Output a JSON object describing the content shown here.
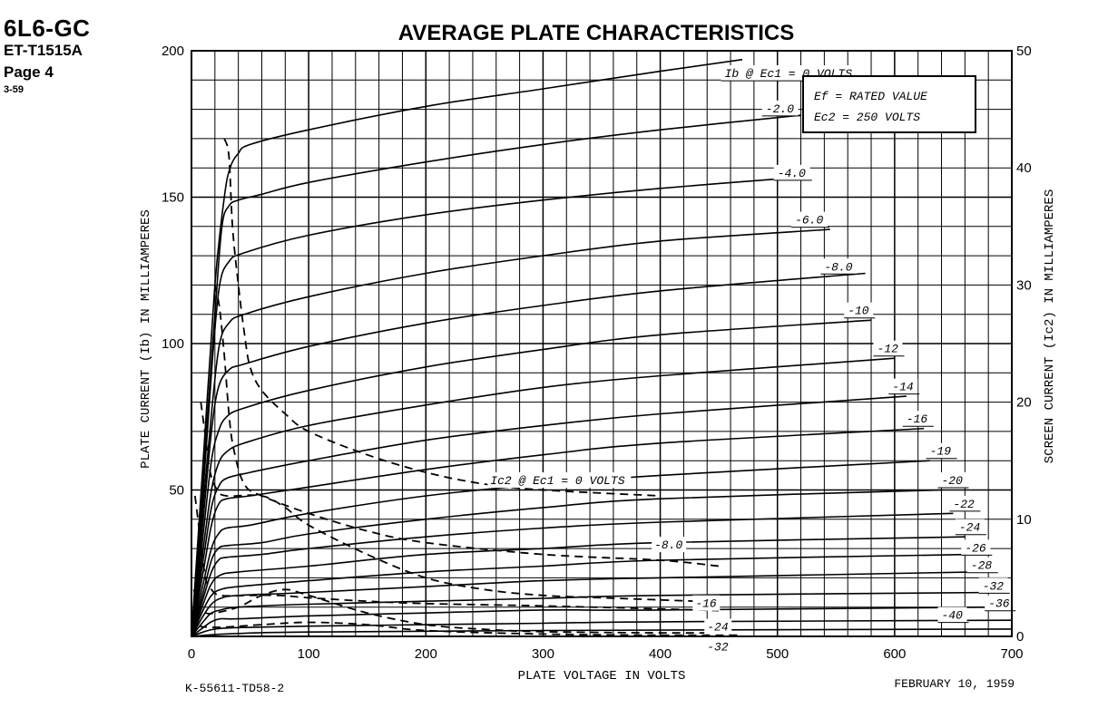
{
  "header": {
    "tube_type": "6L6-GC",
    "code": "ET-T1515A",
    "page": "Page 4",
    "date_code": "3-59"
  },
  "footer": {
    "drawing_number": "K-55611-TD58-2",
    "date": "FEBRUARY 10, 1959"
  },
  "chart_data": {
    "type": "line",
    "title": "AVERAGE PLATE CHARACTERISTICS",
    "xlabel": "PLATE VOLTAGE IN VOLTS",
    "ylabel": "PLATE CURRENT (Ib) IN MILLIAMPERES",
    "y2label": "SCREEN CURRENT (Ic2) IN MILLIAMPERES",
    "xlim": [
      0,
      700
    ],
    "ylim": [
      0,
      200
    ],
    "y2lim": [
      0,
      50
    ],
    "x_ticks": [
      0,
      100,
      200,
      300,
      400,
      500,
      600,
      700
    ],
    "y_ticks": [
      50,
      100,
      150,
      200
    ],
    "y2_ticks": [
      0,
      10,
      20,
      30,
      40,
      50
    ],
    "grid": true,
    "conditions": [
      "Ef = RATED VALUE",
      "Ec2 = 250 VOLTS"
    ],
    "plate_current_series": [
      {
        "name": "Ib @ Ec1 = 0 VOLTS",
        "label_x": 455,
        "label_y": 191,
        "points": [
          [
            0,
            0
          ],
          [
            10,
            60
          ],
          [
            20,
            120
          ],
          [
            28,
            150
          ],
          [
            33,
            160
          ],
          [
            40,
            165
          ],
          [
            50,
            168
          ],
          [
            100,
            173
          ],
          [
            200,
            181
          ],
          [
            300,
            187
          ],
          [
            400,
            193
          ],
          [
            470,
            197
          ]
        ]
      },
      {
        "name": "-2.0",
        "label_x": 490,
        "label_y": 179,
        "points": [
          [
            0,
            0
          ],
          [
            10,
            55
          ],
          [
            20,
            110
          ],
          [
            26,
            140
          ],
          [
            32,
            147
          ],
          [
            40,
            149
          ],
          [
            60,
            151
          ],
          [
            100,
            155
          ],
          [
            200,
            162
          ],
          [
            300,
            168
          ],
          [
            400,
            173
          ],
          [
            520,
            178
          ]
        ]
      },
      {
        "name": "-4.0",
        "label_x": 500,
        "label_y": 157,
        "points": [
          [
            0,
            0
          ],
          [
            10,
            50
          ],
          [
            18,
            95
          ],
          [
            24,
            120
          ],
          [
            32,
            128
          ],
          [
            45,
            131
          ],
          [
            100,
            137
          ],
          [
            200,
            144
          ],
          [
            300,
            149
          ],
          [
            400,
            153
          ],
          [
            525,
            157
          ]
        ]
      },
      {
        "name": "-6.0",
        "label_x": 515,
        "label_y": 141,
        "points": [
          [
            0,
            0
          ],
          [
            10,
            45
          ],
          [
            18,
            80
          ],
          [
            24,
            100
          ],
          [
            32,
            107
          ],
          [
            45,
            110
          ],
          [
            100,
            116
          ],
          [
            200,
            124
          ],
          [
            300,
            130
          ],
          [
            400,
            135
          ],
          [
            545,
            139
          ]
        ]
      },
      {
        "name": "-8.0",
        "label_x": 540,
        "label_y": 125,
        "points": [
          [
            0,
            0
          ],
          [
            10,
            40
          ],
          [
            17,
            70
          ],
          [
            23,
            85
          ],
          [
            32,
            91
          ],
          [
            45,
            93
          ],
          [
            100,
            99
          ],
          [
            200,
            107
          ],
          [
            300,
            113
          ],
          [
            400,
            118
          ],
          [
            575,
            124
          ]
        ]
      },
      {
        "name": "-10",
        "label_x": 560,
        "label_y": 110,
        "points": [
          [
            0,
            0
          ],
          [
            10,
            35
          ],
          [
            17,
            60
          ],
          [
            23,
            70
          ],
          [
            30,
            75
          ],
          [
            45,
            78
          ],
          [
            100,
            84
          ],
          [
            200,
            92
          ],
          [
            300,
            98
          ],
          [
            400,
            103
          ],
          [
            580,
            108
          ]
        ]
      },
      {
        "name": "-12",
        "label_x": 585,
        "label_y": 97,
        "points": [
          [
            0,
            0
          ],
          [
            10,
            30
          ],
          [
            17,
            50
          ],
          [
            23,
            59
          ],
          [
            30,
            63
          ],
          [
            45,
            66
          ],
          [
            100,
            72
          ],
          [
            200,
            79
          ],
          [
            300,
            85
          ],
          [
            400,
            89
          ],
          [
            600,
            95
          ]
        ]
      },
      {
        "name": "-14",
        "label_x": 598,
        "label_y": 84,
        "points": [
          [
            0,
            0
          ],
          [
            10,
            26
          ],
          [
            17,
            44
          ],
          [
            23,
            51
          ],
          [
            30,
            54
          ],
          [
            50,
            56
          ],
          [
            100,
            60
          ],
          [
            200,
            67
          ],
          [
            300,
            72
          ],
          [
            400,
            76
          ],
          [
            610,
            82
          ]
        ]
      },
      {
        "name": "-16",
        "label_x": 610,
        "label_y": 73,
        "points": [
          [
            0,
            0
          ],
          [
            10,
            22
          ],
          [
            17,
            38
          ],
          [
            23,
            45
          ],
          [
            30,
            47
          ],
          [
            50,
            48
          ],
          [
            100,
            51
          ],
          [
            200,
            57
          ],
          [
            300,
            62
          ],
          [
            400,
            66
          ],
          [
            625,
            71
          ]
        ]
      },
      {
        "name": "-19",
        "label_x": 630,
        "label_y": 62,
        "points": [
          [
            0,
            0
          ],
          [
            10,
            18
          ],
          [
            17,
            30
          ],
          [
            23,
            35
          ],
          [
            30,
            37
          ],
          [
            50,
            38
          ],
          [
            100,
            42
          ],
          [
            200,
            48
          ],
          [
            300,
            52
          ],
          [
            400,
            55
          ],
          [
            630,
            60
          ]
        ]
      },
      {
        "name": "-20",
        "label_x": 640,
        "label_y": 52,
        "points": [
          [
            0,
            0
          ],
          [
            10,
            15
          ],
          [
            17,
            26
          ],
          [
            23,
            30
          ],
          [
            30,
            31
          ],
          [
            60,
            32
          ],
          [
            100,
            35
          ],
          [
            200,
            40
          ],
          [
            300,
            44
          ],
          [
            400,
            47
          ],
          [
            640,
            50
          ]
        ]
      },
      {
        "name": "-22",
        "label_x": 650,
        "label_y": 44,
        "points": [
          [
            0,
            0
          ],
          [
            10,
            13
          ],
          [
            17,
            22
          ],
          [
            23,
            26
          ],
          [
            30,
            27
          ],
          [
            60,
            28
          ],
          [
            100,
            30
          ],
          [
            200,
            34
          ],
          [
            300,
            37
          ],
          [
            400,
            39
          ],
          [
            650,
            42
          ]
        ]
      },
      {
        "name": "-24",
        "label_x": 655,
        "label_y": 36,
        "points": [
          [
            0,
            0
          ],
          [
            10,
            11
          ],
          [
            17,
            18
          ],
          [
            25,
            21
          ],
          [
            40,
            22
          ],
          [
            100,
            24
          ],
          [
            200,
            28
          ],
          [
            300,
            30
          ],
          [
            400,
            32
          ],
          [
            660,
            34
          ]
        ]
      },
      {
        "name": "-26",
        "label_x": 660,
        "label_y": 29,
        "points": [
          [
            0,
            0
          ],
          [
            10,
            9
          ],
          [
            17,
            14
          ],
          [
            25,
            16
          ],
          [
            40,
            17
          ],
          [
            100,
            19
          ],
          [
            200,
            22
          ],
          [
            300,
            24
          ],
          [
            400,
            26
          ],
          [
            665,
            28
          ]
        ]
      },
      {
        "name": "-28",
        "label_x": 665,
        "label_y": 23,
        "points": [
          [
            0,
            0
          ],
          [
            10,
            7
          ],
          [
            17,
            11
          ],
          [
            25,
            13
          ],
          [
            40,
            14
          ],
          [
            100,
            15
          ],
          [
            200,
            17
          ],
          [
            300,
            19
          ],
          [
            400,
            20
          ],
          [
            670,
            22
          ]
        ]
      },
      {
        "name": "-32",
        "label_x": 675,
        "label_y": 16,
        "points": [
          [
            0,
            0
          ],
          [
            10,
            5
          ],
          [
            17,
            8
          ],
          [
            25,
            9
          ],
          [
            40,
            10
          ],
          [
            100,
            11
          ],
          [
            200,
            12
          ],
          [
            300,
            13
          ],
          [
            400,
            14
          ],
          [
            685,
            15
          ]
        ]
      },
      {
        "name": "-36",
        "label_x": 680,
        "label_y": 10,
        "points": [
          [
            0,
            0
          ],
          [
            10,
            3
          ],
          [
            17,
            5
          ],
          [
            25,
            6
          ],
          [
            40,
            6
          ],
          [
            100,
            7
          ],
          [
            200,
            8
          ],
          [
            300,
            9
          ],
          [
            400,
            9
          ],
          [
            690,
            10
          ]
        ]
      },
      {
        "name": "-40",
        "label_x": 640,
        "label_y": 6,
        "points": [
          [
            0,
            0
          ],
          [
            10,
            1.5
          ],
          [
            20,
            2.5
          ],
          [
            40,
            3
          ],
          [
            100,
            3.5
          ],
          [
            200,
            4
          ],
          [
            300,
            4.5
          ],
          [
            400,
            5
          ],
          [
            700,
            5.5
          ]
        ]
      },
      {
        "name": "",
        "label_x": null,
        "label_y": null,
        "points": [
          [
            0,
            0
          ],
          [
            15,
            0.5
          ],
          [
            40,
            1
          ],
          [
            100,
            1.5
          ],
          [
            300,
            2
          ],
          [
            700,
            2.5
          ]
        ]
      }
    ],
    "screen_current_series": [
      {
        "name": "Ic2 @ Ec1 = 0 VOLTS",
        "label_x": 255,
        "label_y2": 13,
        "points": [
          [
            28,
            42.5
          ],
          [
            32,
            41
          ],
          [
            35,
            35
          ],
          [
            40,
            30
          ],
          [
            45,
            26
          ],
          [
            50,
            23
          ],
          [
            60,
            21
          ],
          [
            80,
            19
          ],
          [
            100,
            17.5
          ],
          [
            150,
            15.5
          ],
          [
            200,
            14
          ],
          [
            250,
            13
          ],
          [
            300,
            12.5
          ],
          [
            400,
            12
          ]
        ]
      },
      {
        "name": "",
        "label_x": null,
        "label_y2": null,
        "points": [
          [
            20,
            30
          ],
          [
            24,
            28
          ],
          [
            28,
            24
          ],
          [
            32,
            19
          ],
          [
            36,
            16
          ],
          [
            45,
            13
          ],
          [
            60,
            12
          ],
          [
            100,
            10.5
          ],
          [
            150,
            9
          ],
          [
            200,
            8
          ],
          [
            300,
            7
          ],
          [
            400,
            6.5
          ],
          [
            450,
            6
          ]
        ]
      },
      {
        "name": "-8.0",
        "label_x": 395,
        "label_y2": 7.5,
        "points": [
          [
            8,
            20
          ],
          [
            12,
            17
          ],
          [
            16,
            14
          ],
          [
            22,
            12.5
          ],
          [
            30,
            12
          ],
          [
            60,
            12
          ],
          [
            80,
            11
          ],
          [
            100,
            9.5
          ],
          [
            150,
            7
          ],
          [
            200,
            5
          ],
          [
            250,
            4
          ],
          [
            300,
            3.5
          ],
          [
            350,
            3.3
          ],
          [
            430,
            3
          ]
        ]
      },
      {
        "name": "-16",
        "label_x": 430,
        "label_y2": 2.5,
        "points": [
          [
            3,
            12
          ],
          [
            8,
            8
          ],
          [
            12,
            5
          ],
          [
            17,
            4
          ],
          [
            25,
            3.5
          ],
          [
            50,
            3.5
          ],
          [
            75,
            3.5
          ],
          [
            100,
            3.3
          ],
          [
            150,
            3
          ],
          [
            200,
            2.8
          ],
          [
            300,
            2.6
          ],
          [
            380,
            2.4
          ],
          [
            450,
            2.2
          ]
        ]
      },
      {
        "name": "-24",
        "label_x": 440,
        "label_y2": 0.5,
        "points": [
          [
            2,
            4
          ],
          [
            6,
            2.5
          ],
          [
            12,
            2
          ],
          [
            20,
            2
          ],
          [
            40,
            2.5
          ],
          [
            60,
            3.5
          ],
          [
            80,
            4
          ],
          [
            100,
            3.5
          ],
          [
            150,
            2
          ],
          [
            200,
            1
          ],
          [
            250,
            0.6
          ],
          [
            300,
            0.4
          ],
          [
            400,
            0.3
          ],
          [
            450,
            0.3
          ]
        ]
      },
      {
        "name": "-32",
        "label_x": 440,
        "label_y2": -1.2,
        "points": [
          [
            2,
            2
          ],
          [
            6,
            1
          ],
          [
            12,
            0.8
          ],
          [
            30,
            0.8
          ],
          [
            60,
            1
          ],
          [
            100,
            1.2
          ],
          [
            150,
            1
          ],
          [
            200,
            0.5
          ],
          [
            300,
            0.2
          ],
          [
            400,
            0.1
          ],
          [
            470,
            0.1
          ]
        ]
      }
    ]
  }
}
